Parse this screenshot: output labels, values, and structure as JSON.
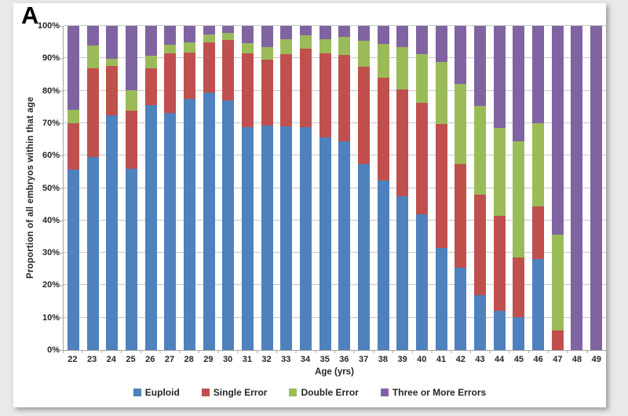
{
  "panel": {
    "label": "A"
  },
  "chart_data": {
    "type": "bar",
    "stacked": true,
    "stacked_100_percent": true,
    "xlabel": "Age (yrs)",
    "ylabel": "Proportion of all embryos within that age",
    "ylim": [
      0,
      100
    ],
    "ytick_step": 10,
    "ytick_suffix": "%",
    "grid": true,
    "legend_position": "bottom",
    "categories": [
      "22",
      "23",
      "24",
      "25",
      "26",
      "27",
      "28",
      "29",
      "30",
      "31",
      "32",
      "33",
      "34",
      "35",
      "36",
      "37",
      "38",
      "39",
      "40",
      "41",
      "42",
      "43",
      "44",
      "45",
      "46",
      "47",
      "48",
      "49"
    ],
    "series": [
      {
        "name": "Euploid",
        "color": "#4F81BD",
        "values": [
          55.8,
          59.5,
          72.5,
          55.9,
          75.5,
          73.2,
          77.4,
          79.5,
          77.1,
          68.8,
          69.2,
          69.0,
          68.7,
          65.6,
          64.3,
          57.4,
          52.2,
          47.4,
          42.0,
          31.5,
          25.4,
          17.0,
          12.0,
          10.2,
          28.0,
          0,
          0,
          0
        ]
      },
      {
        "name": "Single Error",
        "color": "#C0504D",
        "values": [
          14.2,
          27.5,
          15.2,
          18.0,
          11.5,
          18.3,
          14.4,
          15.5,
          18.5,
          22.7,
          20.4,
          22.4,
          24.3,
          26.0,
          26.7,
          30.1,
          31.8,
          33.1,
          34.3,
          38.3,
          32.1,
          31.0,
          29.5,
          18.4,
          16.4,
          6.0,
          0,
          0
        ]
      },
      {
        "name": "Double Error",
        "color": "#9BBB59",
        "values": [
          4.0,
          7.0,
          2.1,
          6.3,
          3.8,
          2.7,
          3.2,
          2.3,
          2.2,
          3.1,
          3.9,
          4.4,
          4.0,
          4.4,
          5.5,
          8.0,
          10.5,
          13.0,
          14.9,
          19.1,
          24.5,
          27.2,
          27.1,
          35.8,
          25.6,
          29.5,
          0,
          0
        ]
      },
      {
        "name": "Three or More Errors",
        "color": "#8064A2",
        "values": [
          26.0,
          6.0,
          10.2,
          19.8,
          9.2,
          5.8,
          5.0,
          2.7,
          2.2,
          5.4,
          6.5,
          4.2,
          3.0,
          4.0,
          3.5,
          4.5,
          5.5,
          6.5,
          8.8,
          11.1,
          18.0,
          24.8,
          31.4,
          35.6,
          30.0,
          64.5,
          100,
          100
        ]
      }
    ],
    "gridline_color": "#c9c9c9",
    "axis_color": "#a6a6a6"
  }
}
